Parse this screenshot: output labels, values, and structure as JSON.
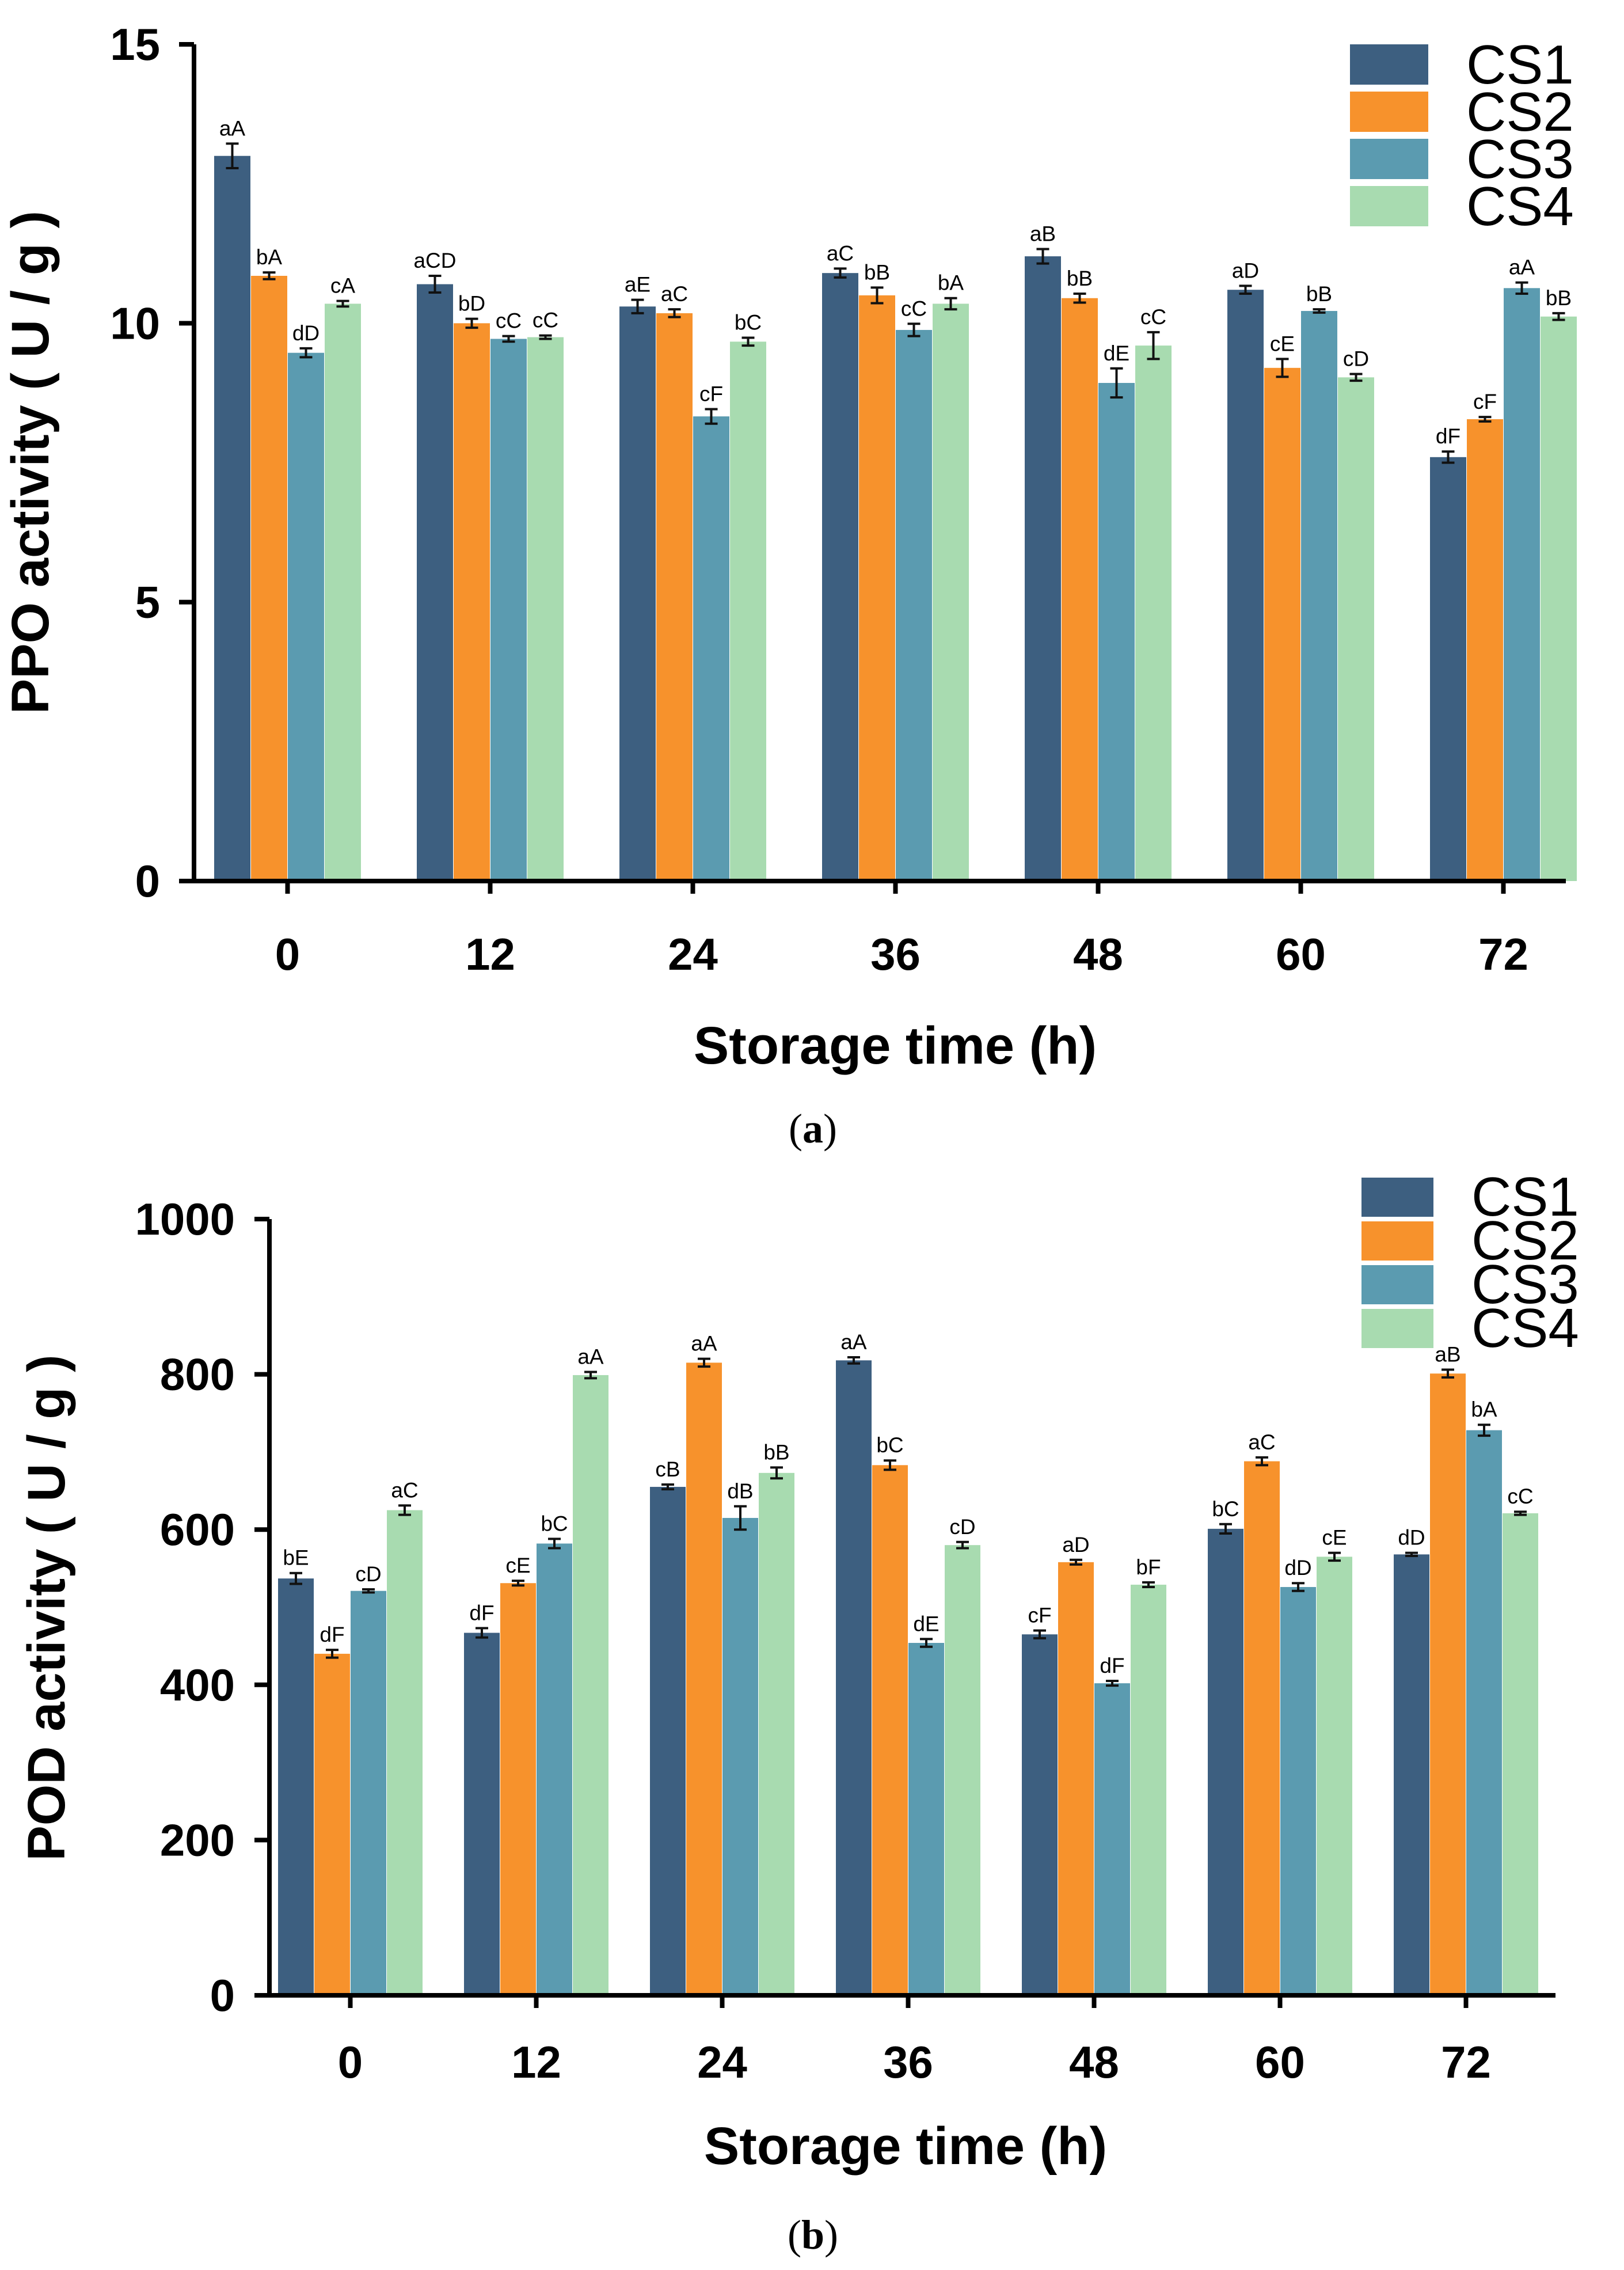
{
  "colors": {
    "CS1": "#3d5f80",
    "CS2": "#f7922c",
    "CS3": "#5b9bb0",
    "CS4": "#a8dbb0",
    "axis": "#000000",
    "error": "#111111"
  },
  "chart_data": [
    {
      "type": "bar",
      "panel_label": "a",
      "panel_label_open": "(",
      "panel_label_close": ")",
      "title": "",
      "xlabel": "Storage time (h)",
      "ylabel": "PPO activity ( U / g )",
      "ylim": [
        0,
        15
      ],
      "yticks": [
        0,
        5,
        10,
        15
      ],
      "categories": [
        "0",
        "12",
        "24",
        "36",
        "48",
        "60",
        "72"
      ],
      "legend_position": "top-right",
      "series": [
        {
          "name": "CS1",
          "values": [
            13.0,
            10.7,
            10.3,
            10.9,
            11.2,
            10.6,
            7.6
          ],
          "errors": [
            0.22,
            0.15,
            0.12,
            0.08,
            0.13,
            0.07,
            0.1
          ],
          "labels": [
            "aA",
            "aCD",
            "aE",
            "aC",
            "aB",
            "aD",
            "dF"
          ]
        },
        {
          "name": "CS2",
          "values": [
            10.85,
            10.0,
            10.18,
            10.5,
            10.45,
            9.2,
            8.28
          ],
          "errors": [
            0.06,
            0.08,
            0.07,
            0.14,
            0.08,
            0.16,
            0.04
          ],
          "labels": [
            "bA",
            "bD",
            "aC",
            "bB",
            "bB",
            "cE",
            "cF"
          ]
        },
        {
          "name": "CS3",
          "values": [
            9.47,
            9.72,
            8.33,
            9.88,
            8.93,
            10.22,
            10.63
          ],
          "errors": [
            0.08,
            0.05,
            0.13,
            0.11,
            0.26,
            0.03,
            0.1
          ],
          "labels": [
            "dD",
            "cC",
            "cF",
            "cC",
            "dE",
            "bB",
            "aA"
          ]
        },
        {
          "name": "CS4",
          "values": [
            10.35,
            9.75,
            9.67,
            10.35,
            9.6,
            9.03,
            10.12
          ],
          "errors": [
            0.05,
            0.03,
            0.07,
            0.1,
            0.24,
            0.06,
            0.06
          ],
          "labels": [
            "cA",
            "cC",
            "bC",
            "bA",
            "cC",
            "cD",
            "bB"
          ]
        }
      ]
    },
    {
      "type": "bar",
      "panel_label": "b",
      "panel_label_open": "(",
      "panel_label_close": ")",
      "title": "",
      "xlabel": "Storage time (h)",
      "ylabel": "POD activity ( U / g )",
      "ylim": [
        0,
        1000
      ],
      "yticks": [
        0,
        200,
        400,
        600,
        800,
        1000
      ],
      "categories": [
        "0",
        "12",
        "24",
        "36",
        "48",
        "60",
        "72"
      ],
      "legend_position": "top-right",
      "series": [
        {
          "name": "CS1",
          "values": [
            537,
            467,
            655,
            818,
            465,
            601,
            568
          ],
          "errors": [
            7,
            6,
            3,
            4,
            5,
            6,
            2
          ],
          "labels": [
            "bE",
            "dF",
            "cB",
            "aA",
            "cF",
            "bC",
            "dD"
          ]
        },
        {
          "name": "CS2",
          "values": [
            440,
            531,
            815,
            683,
            558,
            688,
            801
          ],
          "errors": [
            5,
            3,
            5,
            6,
            3,
            5,
            5
          ],
          "labels": [
            "dF",
            "cE",
            "aA",
            "bC",
            "aD",
            "aC",
            "aB"
          ]
        },
        {
          "name": "CS3",
          "values": [
            521,
            582,
            615,
            454,
            402,
            526,
            728
          ],
          "errors": [
            2,
            6,
            15,
            5,
            3,
            5,
            7
          ],
          "labels": [
            "cD",
            "bC",
            "dB",
            "dE",
            "dF",
            "dD",
            "bA"
          ]
        },
        {
          "name": "CS4",
          "values": [
            625,
            799,
            673,
            580,
            529,
            565,
            621
          ],
          "errors": [
            6,
            4,
            7,
            4,
            3,
            5,
            2
          ],
          "labels": [
            "aC",
            "aA",
            "bB",
            "cD",
            "bF",
            "cE",
            "cC"
          ]
        }
      ]
    }
  ]
}
